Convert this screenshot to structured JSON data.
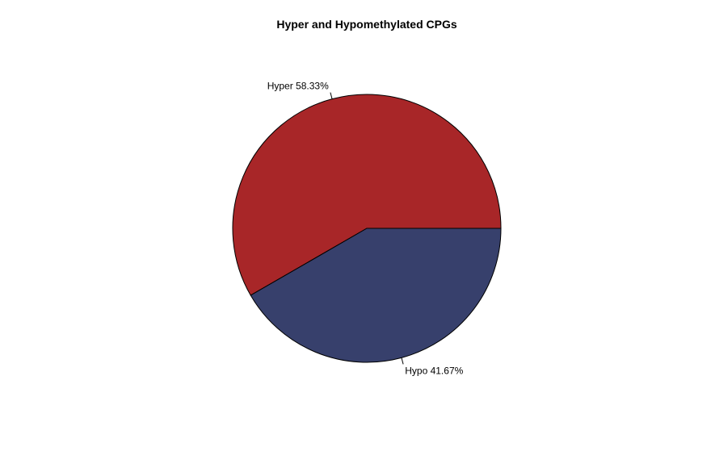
{
  "chart_data": {
    "type": "pie",
    "title": "Hyper and Hypomethylated CPGs",
    "slices": [
      {
        "label": "Hyper 58.33%",
        "value": 58.33,
        "color": "#a82628"
      },
      {
        "label": "Hypo 41.67%",
        "value": 41.67,
        "color": "#37406c"
      }
    ],
    "start_angle_deg": 0,
    "direction": "counterclockwise",
    "outline_color": "#000000"
  }
}
